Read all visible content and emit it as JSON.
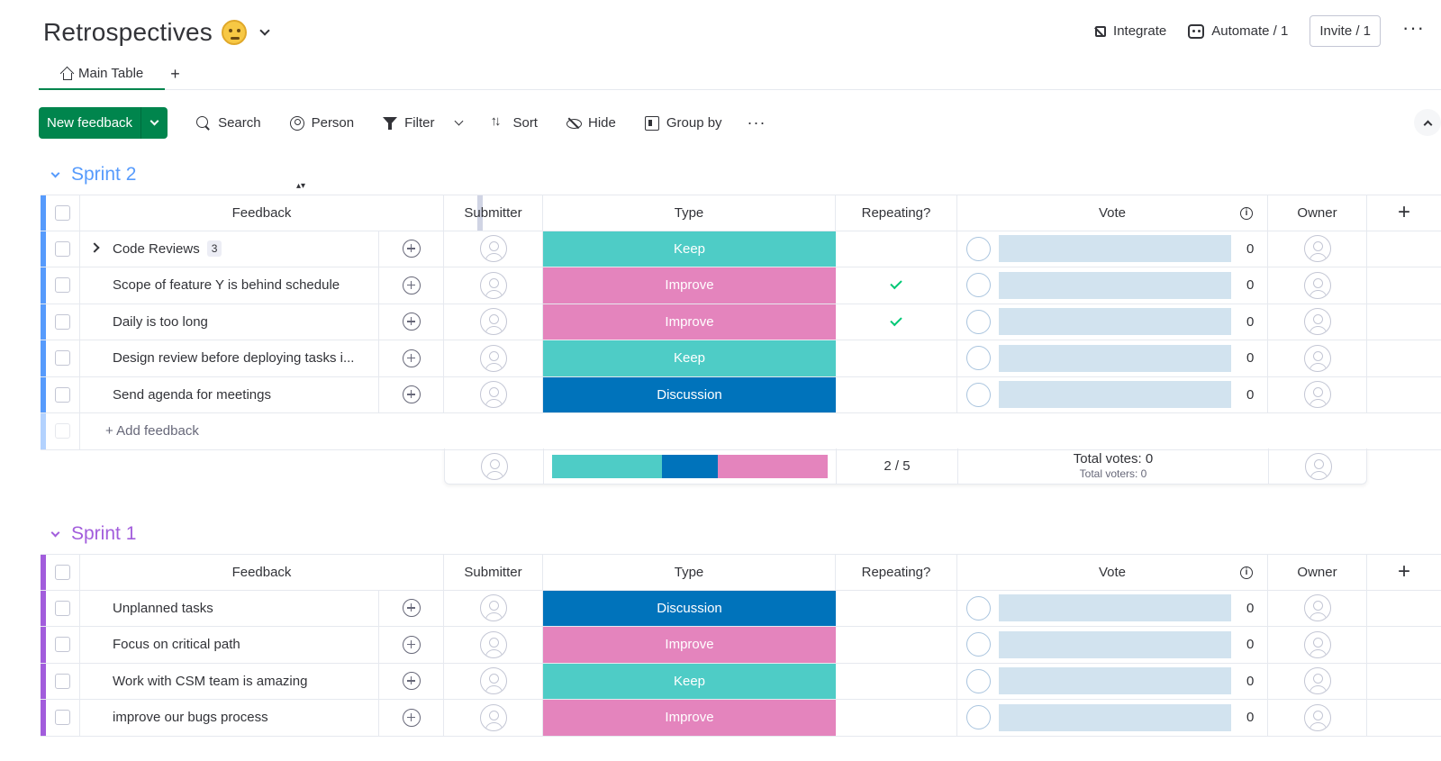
{
  "board": {
    "title": "Retrospectives"
  },
  "header": {
    "integrate_label": "Integrate",
    "automate_label": "Automate / 1",
    "invite_label": "Invite / 1"
  },
  "tabs": [
    {
      "label": "Main Table"
    }
  ],
  "toolbar": {
    "new_item_label": "New feedback",
    "search_label": "Search",
    "person_label": "Person",
    "filter_label": "Filter",
    "sort_label": "Sort",
    "hide_label": "Hide",
    "group_by_label": "Group by"
  },
  "columns": {
    "feedback": "Feedback",
    "submitter": "Submitter",
    "type": "Type",
    "repeating": "Repeating?",
    "vote": "Vote",
    "owner": "Owner"
  },
  "colors": {
    "Keep": "#4eccc6",
    "Improve": "#e484bd",
    "Discussion": "#0073bb",
    "accent": "#00854d",
    "sprint2": "#579bfc",
    "sprint1": "#a25ddc"
  },
  "groups": [
    {
      "title": "Sprint 2",
      "color": "#579bfc",
      "items": [
        {
          "name": "Code Reviews",
          "subitems": "3",
          "type": "Keep",
          "repeating": false,
          "votes": "0"
        },
        {
          "name": "Scope of feature Y is behind schedule",
          "type": "Improve",
          "repeating": true,
          "votes": "0"
        },
        {
          "name": "Daily is too long",
          "type": "Improve",
          "repeating": true,
          "votes": "0"
        },
        {
          "name": "Design review before deploying tasks i...",
          "type": "Keep",
          "repeating": false,
          "votes": "0"
        },
        {
          "name": "Send agenda for meetings",
          "type": "Discussion",
          "repeating": false,
          "votes": "0"
        }
      ],
      "add_label": "+ Add feedback",
      "summary": {
        "type_distribution": [
          {
            "label": "Keep",
            "count": 2
          },
          {
            "label": "Discussion",
            "count": 1
          },
          {
            "label": "Improve",
            "count": 2
          }
        ],
        "repeating": "2 / 5",
        "total_votes": "Total votes: 0",
        "total_voters": "Total voters: 0"
      }
    },
    {
      "title": "Sprint 1",
      "color": "#a25ddc",
      "items": [
        {
          "name": "Unplanned tasks",
          "type": "Discussion",
          "repeating": false,
          "votes": "0"
        },
        {
          "name": "Focus on critical path",
          "type": "Improve",
          "repeating": false,
          "votes": "0"
        },
        {
          "name": "Work with CSM team is amazing",
          "type": "Keep",
          "repeating": false,
          "votes": "0"
        },
        {
          "name": "improve our bugs process",
          "type": "Improve",
          "repeating": false,
          "votes": "0"
        }
      ]
    }
  ]
}
